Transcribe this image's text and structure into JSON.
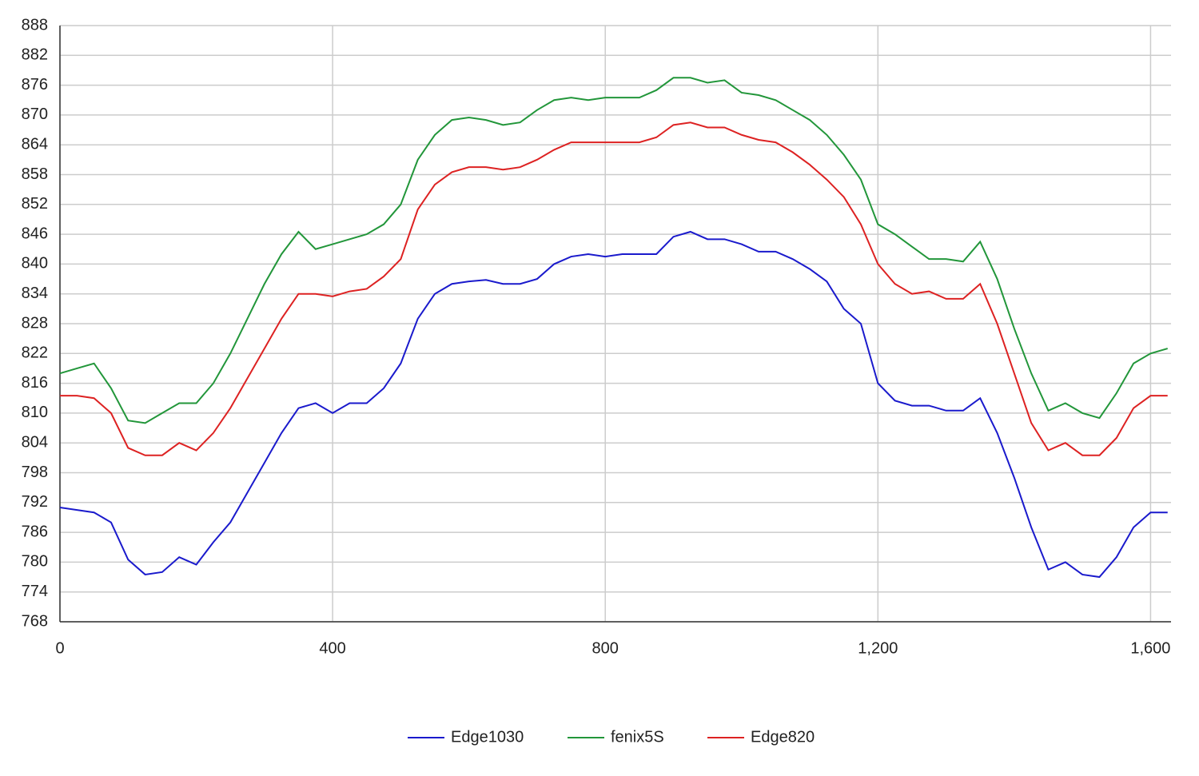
{
  "chart_data": {
    "type": "line",
    "x": [
      0,
      25,
      50,
      75,
      100,
      125,
      150,
      175,
      200,
      225,
      250,
      275,
      300,
      325,
      350,
      375,
      400,
      425,
      450,
      475,
      500,
      525,
      550,
      575,
      600,
      625,
      650,
      675,
      700,
      725,
      750,
      775,
      800,
      825,
      850,
      875,
      900,
      925,
      950,
      975,
      1000,
      1025,
      1050,
      1075,
      1100,
      1125,
      1150,
      1175,
      1200,
      1225,
      1250,
      1275,
      1300,
      1325,
      1350,
      1375,
      1400,
      1425,
      1450,
      1475,
      1500,
      1525,
      1550,
      1575,
      1600,
      1625
    ],
    "series": [
      {
        "name": "Edge1030",
        "color": "#1a1acc",
        "values": [
          791,
          790.5,
          790,
          788,
          780.5,
          777.5,
          778,
          781,
          779.5,
          784,
          788,
          794,
          800,
          806,
          811,
          812,
          810,
          812,
          812,
          815,
          820,
          829,
          834,
          836,
          836.5,
          836.8,
          836,
          836,
          837,
          840,
          841.5,
          842,
          841.5,
          842,
          842,
          842,
          845.5,
          846.5,
          845,
          845,
          844,
          842.5,
          842.5,
          841,
          839,
          836.5,
          831,
          828,
          816,
          812.5,
          811.5,
          811.5,
          810.5,
          810.5,
          813,
          806,
          797,
          787,
          778.5,
          780,
          777.5,
          777,
          781,
          787,
          790,
          790
        ]
      },
      {
        "name": "fenix5S",
        "color": "#22963a",
        "values": [
          818,
          819,
          820,
          815,
          808.5,
          808,
          810,
          812,
          812,
          816,
          822,
          829,
          836,
          842,
          846.5,
          843,
          844,
          845,
          846,
          848,
          852,
          861,
          866,
          869,
          869.5,
          869,
          868,
          868.5,
          871,
          873,
          873.5,
          873,
          873.5,
          873.5,
          873.5,
          875,
          877.5,
          877.5,
          876.5,
          877,
          874.5,
          874,
          873,
          871,
          869,
          866,
          862,
          857,
          848,
          846,
          843.5,
          841,
          841,
          840.5,
          844.5,
          837,
          827,
          818,
          810.5,
          812,
          810,
          809,
          814,
          820,
          822,
          823
        ]
      },
      {
        "name": "Edge820",
        "color": "#dd2222",
        "values": [
          813.5,
          813.5,
          813,
          810,
          803,
          801.5,
          801.5,
          804,
          802.5,
          806,
          811,
          817,
          823,
          829,
          834,
          834,
          833.5,
          834.5,
          835,
          837.5,
          841,
          851,
          856,
          858.5,
          859.5,
          859.5,
          859,
          859.5,
          861,
          863,
          864.5,
          864.5,
          864.5,
          864.5,
          864.5,
          865.5,
          868,
          868.5,
          867.5,
          867.5,
          866,
          865,
          864.5,
          862.5,
          860,
          857,
          853.5,
          848,
          840,
          836,
          834,
          834.5,
          833,
          833,
          836,
          828,
          818,
          808,
          802.5,
          804,
          801.5,
          801.5,
          805,
          811,
          813.5,
          813.5
        ]
      }
    ],
    "xlim": [
      0,
      1630
    ],
    "xticks": [
      0,
      400,
      800,
      {
        "value": 1200,
        "label": "1,200"
      },
      {
        "value": 1600,
        "label": "1,600"
      }
    ],
    "ylim": [
      768,
      888
    ],
    "yticks": [
      768,
      774,
      780,
      786,
      792,
      798,
      804,
      810,
      816,
      822,
      828,
      834,
      840,
      846,
      852,
      858,
      864,
      870,
      876,
      882,
      888
    ],
    "grid": true,
    "legend": "bottom"
  }
}
